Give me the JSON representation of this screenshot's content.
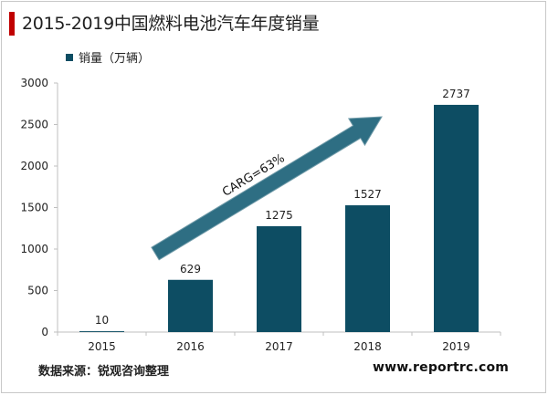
{
  "title": "2015-2019中国燃料电池汽车年度销量",
  "source": "数据来源：锐观咨询整理",
  "website": "www.reportrc.com",
  "colors": {
    "accent_bar": "#c00000",
    "bar": "#0d4d63",
    "arrow_fill": "#2e6e83",
    "axis": "#bfbfbf"
  },
  "chart_data": {
    "type": "bar",
    "categories": [
      "2015",
      "2016",
      "2017",
      "2018",
      "2019"
    ],
    "series": [
      {
        "name": "销量（万辆）",
        "values": [
          10,
          629,
          1275,
          1527,
          2737
        ]
      }
    ],
    "ylim": [
      0,
      3000
    ],
    "yticks": [
      0,
      500,
      1000,
      1500,
      2000,
      2500,
      3000
    ],
    "grid": false,
    "legend": "top-left",
    "annotation": {
      "text": "CARG=63%",
      "type": "growth-arrow"
    }
  }
}
